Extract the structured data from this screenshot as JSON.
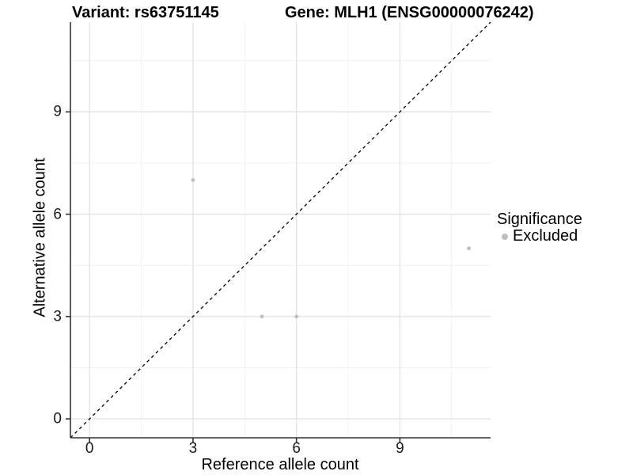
{
  "header": {
    "variant_title": "Variant: rs63751145",
    "gene_title": "Gene: MLH1 (ENSG00000076242)"
  },
  "axes": {
    "x_label": "Reference allele count",
    "y_label": "Alternative allele count",
    "x_tick_labels": [
      "0",
      "3",
      "6",
      "9"
    ],
    "y_tick_labels": [
      "0",
      "3",
      "6",
      "9"
    ]
  },
  "legend": {
    "title": "Significance",
    "items": [
      {
        "label": "Excluded",
        "color": "#bebebe"
      }
    ]
  },
  "colors": {
    "point": "#bebebe",
    "gridline_major": "#e2e2e2",
    "gridline_minor": "#efefef",
    "axis_line": "#333333",
    "identity_line": "#000000",
    "background": "#ffffff"
  },
  "chart_data": {
    "type": "scatter",
    "title": "Variant: rs63751145    Gene: MLH1 (ENSG00000076242)",
    "xlabel": "Reference allele count",
    "ylabel": "Alternative allele count",
    "xlim": [
      -0.555,
      11.63
    ],
    "ylim": [
      -0.555,
      11.63
    ],
    "x_ticks": [
      0,
      3,
      6,
      9
    ],
    "y_ticks": [
      0,
      3,
      6,
      9
    ],
    "x_minor_ticks": [
      1.5,
      4.5,
      7.5,
      10.5
    ],
    "y_minor_ticks": [
      1.5,
      4.5,
      7.5,
      10.5
    ],
    "grid": true,
    "legend_position": "right",
    "reference_line": {
      "type": "identity",
      "style": "dashed",
      "color": "#000000"
    },
    "series": [
      {
        "name": "Excluded",
        "color": "#bebebe",
        "points": [
          {
            "x": 3,
            "y": 7
          },
          {
            "x": 5,
            "y": 3
          },
          {
            "x": 6,
            "y": 3
          },
          {
            "x": 11,
            "y": 5
          }
        ]
      }
    ]
  }
}
